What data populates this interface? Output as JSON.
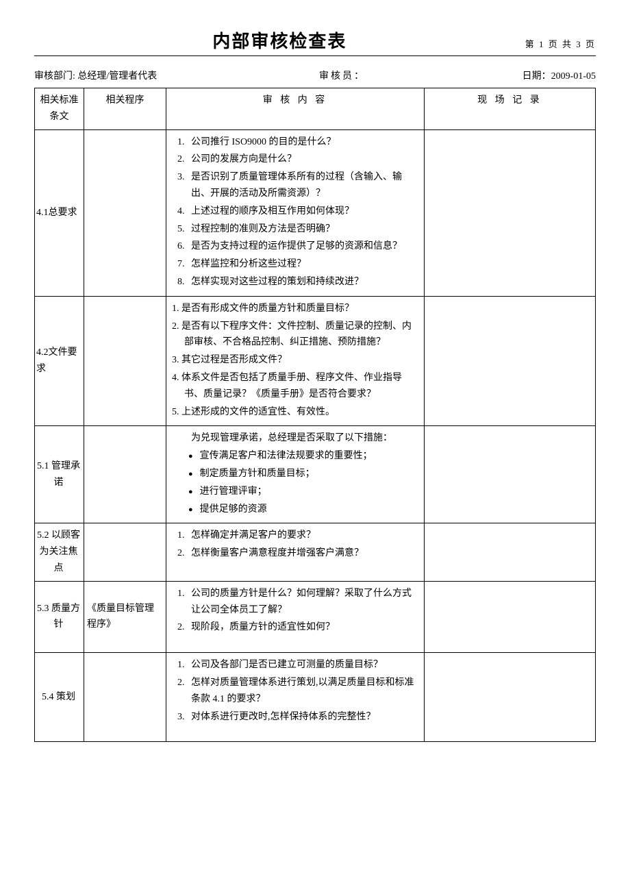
{
  "header": {
    "title": "内部审核检查表",
    "page_num": "第 1 页 共 3 页"
  },
  "meta": {
    "dept_label": "审核部门:",
    "dept_value": "总经理/管理者代表",
    "auditor_label": "审核员：",
    "date_label": "日期：",
    "date_value": "2009-01-05"
  },
  "columns": {
    "standard": "相关标准条文",
    "procedure": "相关程序",
    "content": "审 核 内 容",
    "record": "现 场 记 录"
  },
  "rows": [
    {
      "std": "4.1总要求",
      "proc": "",
      "list_type": "num",
      "items": [
        "公司推行 ISO9000 的目的是什么？",
        "公司的发展方向是什么？",
        "是否识别了质量管理体系所有的过程（含输入、输出、开展的活动及所需资源）？",
        "上述过程的顺序及相互作用如何体现？",
        "过程控制的准则及方法是否明确？",
        "是否为支持过程的运作提供了足够的资源和信息？",
        "怎样监控和分析这些过程？",
        "怎样实现对这些过程的策划和持续改进？"
      ]
    },
    {
      "std": "4.2文件要求",
      "proc": "",
      "list_type": "cn",
      "items": [
        "1. 是否有形成文件的质量方针和质量目标？",
        "2. 是否有以下程序文件：文件控制、质量记录的控制、内部审核、不合格品控制、纠正措施、预防措施？",
        "3. 其它过程是否形成文件？",
        "4. 体系文件是否包括了质量手册、程序文件、作业指导书、质量记录？《质量手册》是否符合要求？",
        "5. 上述形成的文件的适宜性、有效性。"
      ]
    },
    {
      "std": "5.1 管理承诺",
      "std_center": true,
      "proc": "",
      "list_type": "bullet_intro",
      "intro": "为兑现管理承诺，总经理是否采取了以下措施：",
      "items": [
        "宣传满足客户和法律法规要求的重要性；",
        "制定质量方针和质量目标；",
        "进行管理评审；",
        "提供足够的资源"
      ]
    },
    {
      "std": "5.2 以顾客为关注焦点",
      "std_center": true,
      "proc": "",
      "list_type": "num",
      "items": [
        "怎样确定并满足客户的要求？",
        "怎样衡量客户满意程度并增强客户满意？"
      ]
    },
    {
      "std": "5.3 质量方针",
      "std_center": true,
      "proc": "《质量目标管理程序》",
      "list_type": "num",
      "items": [
        "公司的质量方针是什么？如何理解？采取了什么方式让公司全体员工了解？",
        "现阶段，质量方针的适宜性如何？"
      ],
      "trailing_space": true
    },
    {
      "std": "5.4 策划",
      "std_center": true,
      "proc": "",
      "list_type": "num",
      "items": [
        "公司及各部门是否已建立可测量的质量目标？",
        "怎样对质量管理体系进行策划,以满足质量目标和标准条款 4.1 的要求？",
        "对体系进行更改时,怎样保持体系的完整性？"
      ],
      "trailing_space": true
    }
  ]
}
